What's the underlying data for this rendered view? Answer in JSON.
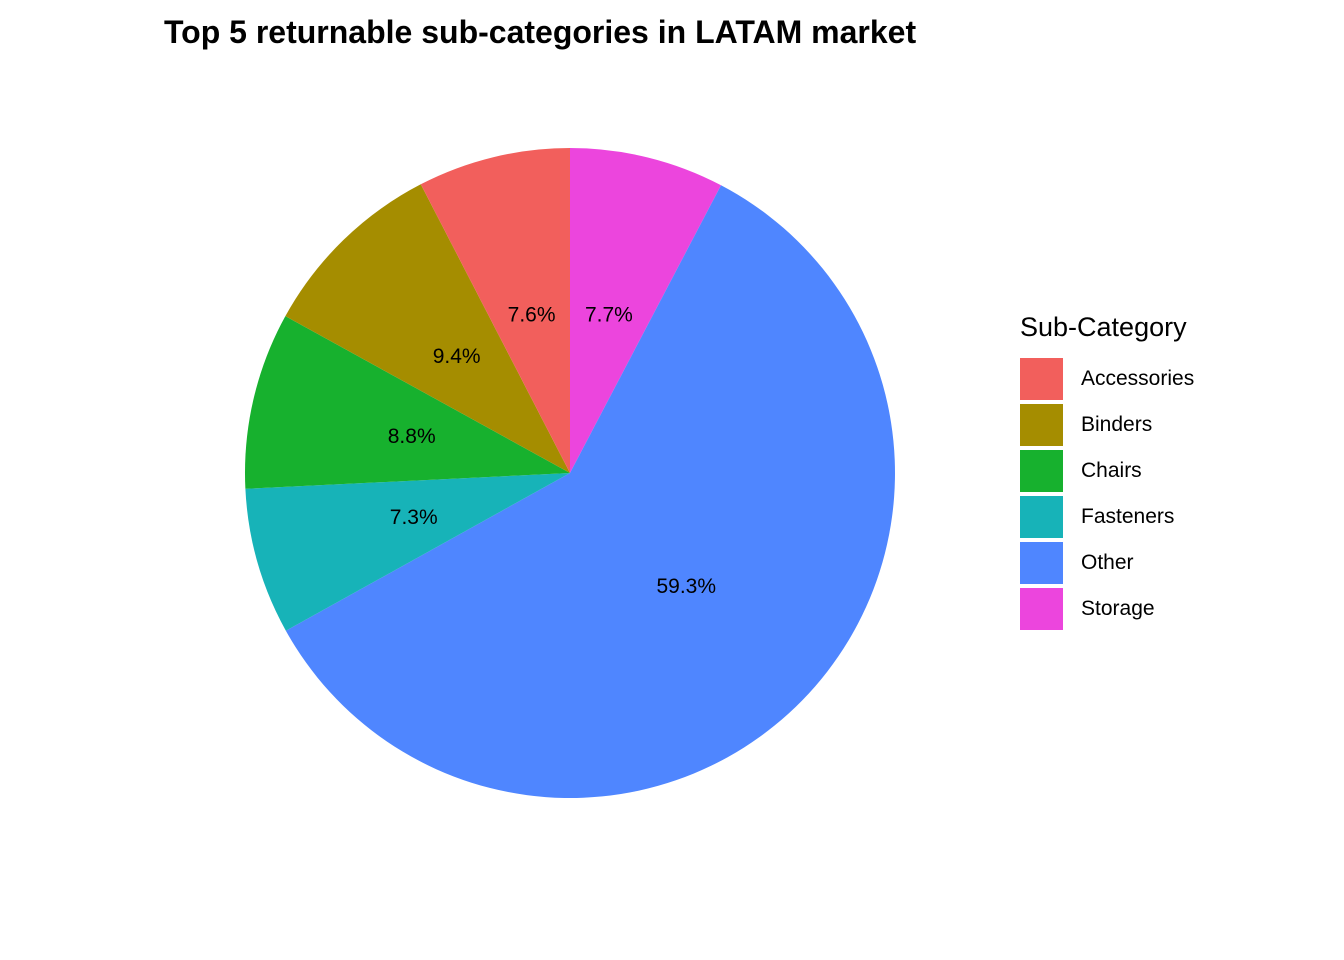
{
  "chart_data": {
    "type": "pie",
    "title": "Top 5 returnable sub-categories in LATAM market",
    "legend": {
      "title": "Sub-Category",
      "position": "right"
    },
    "slices": [
      {
        "category": "Accessories",
        "value": 7.6,
        "label": "7.6%",
        "color": "#F25F5C"
      },
      {
        "category": "Binders",
        "value": 9.4,
        "label": "9.4%",
        "color": "#A58D00"
      },
      {
        "category": "Chairs",
        "value": 8.8,
        "label": "8.8%",
        "color": "#17B12E"
      },
      {
        "category": "Fasteners",
        "value": 7.3,
        "label": "7.3%",
        "color": "#17B3B8"
      },
      {
        "category": "Other",
        "value": 59.3,
        "label": "59.3%",
        "color": "#4F86FF"
      },
      {
        "category": "Storage",
        "value": 7.7,
        "label": "7.7%",
        "color": "#EC45DD"
      }
    ],
    "drawing_order": [
      "Storage",
      "Other",
      "Fasteners",
      "Chairs",
      "Binders",
      "Accessories"
    ],
    "direction": "clockwise",
    "start_angle": "top"
  }
}
